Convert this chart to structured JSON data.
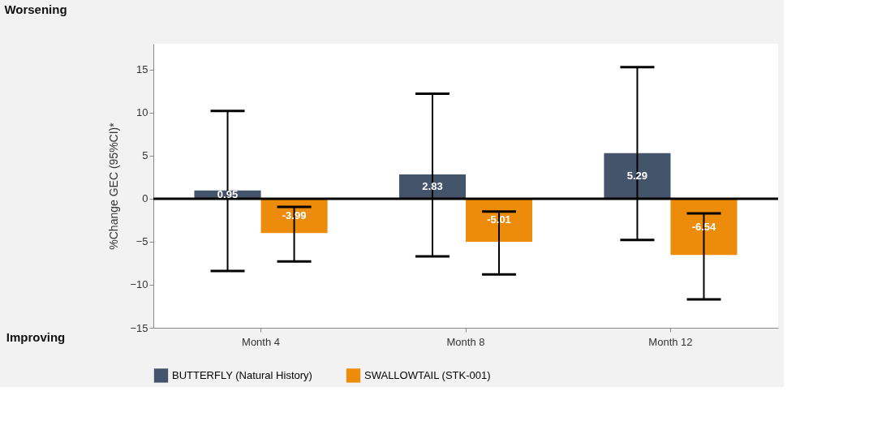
{
  "chart_data": {
    "type": "bar",
    "ylabel": "%Change GEC (95%CI)*",
    "categories": [
      "Month 4",
      "Month 8",
      "Month 12"
    ],
    "series": [
      {
        "name": "BUTTERFLY (Natural History)",
        "color": "#44546a",
        "values": [
          0.95,
          2.83,
          5.29
        ],
        "errors": [
          [
            -8.4,
            10.2
          ],
          [
            -6.7,
            12.2
          ],
          [
            -4.8,
            15.3
          ]
        ]
      },
      {
        "name": "SWALLOWTAIL (STK-001)",
        "color": "#ed8c0b",
        "values": [
          -3.99,
          -5.01,
          -6.54
        ],
        "errors": [
          [
            -7.3,
            -0.95
          ],
          [
            -8.8,
            -1.5
          ],
          [
            -11.7,
            -1.7
          ]
        ]
      }
    ],
    "ylim": [
      -15,
      18
    ],
    "yticks": [
      -15,
      -10,
      -5,
      0,
      5,
      10,
      15
    ],
    "data_labels": true,
    "grid": false,
    "legend": "bottom",
    "ref_lines": [
      {
        "axis": "y",
        "value": 0,
        "color": "#000000"
      }
    ],
    "annotations": [
      "Worsening",
      "Improving"
    ]
  }
}
